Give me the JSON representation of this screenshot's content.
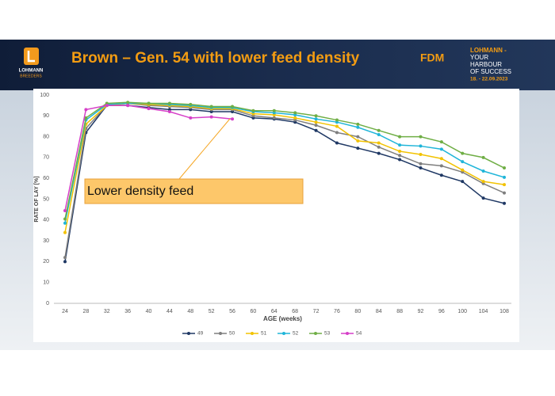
{
  "header": {
    "title": "Brown – Gen. 54 with lower feed density",
    "logo_line1": "LOHMANN",
    "logo_line2": "BREEDERS",
    "event": "FDM",
    "slogan": [
      "LOHMANN -",
      "YOUR",
      "HARBOUR",
      "OF SUCCESS"
    ],
    "dates": "18. - 22.09.2023"
  },
  "chart_data": {
    "type": "line",
    "categories": [
      "24",
      "28",
      "32",
      "36",
      "40",
      "44",
      "48",
      "52",
      "56",
      "60",
      "64",
      "68",
      "72",
      "76",
      "80",
      "84",
      "88",
      "92",
      "96",
      "100",
      "104",
      "108"
    ],
    "x_label": "AGE (weeks)",
    "y_label": "RATE OF LAY [%]",
    "ylim": [
      0,
      100
    ],
    "yticks": [
      0,
      10,
      20,
      30,
      40,
      50,
      60,
      70,
      80,
      90,
      100
    ],
    "grid": false,
    "annotation": "Lower density feed",
    "series": [
      {
        "name": "49",
        "color": "#1f3864",
        "values": [
          20,
          82,
          95,
          95,
          94,
          93,
          93,
          92,
          92,
          89,
          88.5,
          87,
          83,
          77,
          74.5,
          72,
          69,
          65,
          61.5,
          58.5,
          50.5,
          48
        ]
      },
      {
        "name": "50",
        "color": "#7f7f7f",
        "values": [
          22,
          84,
          95,
          96,
          95,
          94.5,
          94,
          93,
          93,
          90,
          89,
          88,
          85.5,
          82,
          80,
          75,
          71,
          67,
          66,
          63,
          57.5,
          53
        ]
      },
      {
        "name": "51",
        "color": "#f2c200",
        "values": [
          34,
          86,
          95,
          96,
          95.5,
          95,
          94.5,
          93.5,
          93.5,
          91,
          90.5,
          89,
          87,
          85,
          78,
          77,
          73,
          71.5,
          69.5,
          64,
          58.5,
          57
        ]
      },
      {
        "name": "52",
        "color": "#1fb5d9",
        "values": [
          38.5,
          88,
          95.5,
          96,
          96,
          95.5,
          95,
          94,
          94,
          92,
          91.5,
          90.5,
          88.5,
          87,
          84.5,
          81,
          76,
          75.5,
          74,
          68,
          63.5,
          60.5
        ]
      },
      {
        "name": "53",
        "color": "#6fae45",
        "values": [
          40.5,
          89,
          96,
          96.5,
          96,
          96,
          95.5,
          94.5,
          94.5,
          92.5,
          92.5,
          91.5,
          90,
          88,
          86,
          83,
          80,
          80,
          77.5,
          72,
          70,
          65
        ]
      },
      {
        "name": "54",
        "color": "#d63fc8",
        "values": [
          44.5,
          93,
          95,
          95,
          93.5,
          92,
          89,
          89.5,
          88.5,
          null,
          null,
          null,
          null,
          null,
          null,
          null,
          null,
          null,
          null,
          null,
          null,
          null
        ]
      }
    ]
  }
}
